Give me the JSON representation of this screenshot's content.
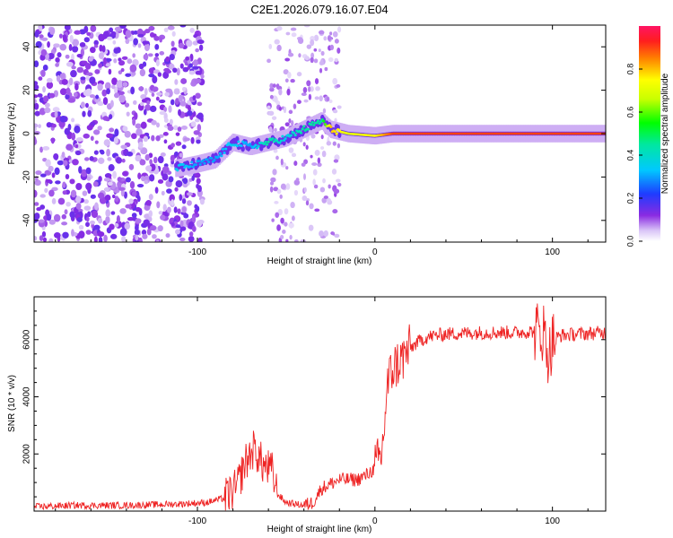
{
  "title": "C2E1.2026.079.16.07.E04",
  "chart_data": [
    {
      "type": "heatmap",
      "xlabel": "Height of straight line (km)",
      "ylabel": "Frequency (Hz)",
      "xlim": [
        -192,
        130
      ],
      "ylim": [
        -50,
        50
      ],
      "xticks": [
        -100,
        0,
        100
      ],
      "yticks": [
        -40,
        -20,
        0,
        20,
        40
      ],
      "colorbar": {
        "label": "Normalized spectral amplitude",
        "range": [
          0,
          1
        ],
        "ticks": [
          0.0,
          0.2,
          0.4,
          0.6,
          0.8
        ]
      },
      "ridge": [
        {
          "x": -112,
          "y": -16,
          "amp": 0.35
        },
        {
          "x": -100,
          "y": -14,
          "amp": 0.3
        },
        {
          "x": -90,
          "y": -12,
          "amp": 0.3
        },
        {
          "x": -80,
          "y": -4,
          "amp": 0.35
        },
        {
          "x": -70,
          "y": -6,
          "amp": 0.3
        },
        {
          "x": -60,
          "y": -4,
          "amp": 0.45
        },
        {
          "x": -50,
          "y": -2,
          "amp": 0.35
        },
        {
          "x": -40,
          "y": 2,
          "amp": 0.45
        },
        {
          "x": -30,
          "y": 6,
          "amp": 0.45
        },
        {
          "x": -25,
          "y": 2,
          "amp": 0.8
        },
        {
          "x": -15,
          "y": 0,
          "amp": 0.7
        },
        {
          "x": 0,
          "y": -1,
          "amp": 0.75
        },
        {
          "x": 10,
          "y": 0,
          "amp": 0.9
        },
        {
          "x": 130,
          "y": 0,
          "amp": 0.9
        }
      ]
    },
    {
      "type": "line",
      "xlabel": "Height of straight line (km)",
      "ylabel": "SNR (10 * v/v)",
      "xlim": [
        -192,
        130
      ],
      "ylim": [
        0,
        7500
      ],
      "xticks": [
        -100,
        0,
        100
      ],
      "yticks": [
        2000,
        4000,
        6000
      ],
      "series": [
        {
          "name": "SNR",
          "color": "#ee2222",
          "x": [
            -192,
            -170,
            -140,
            -110,
            -95,
            -85,
            -78,
            -73,
            -68,
            -63,
            -58,
            -55,
            -50,
            -45,
            -40,
            -35,
            -30,
            -20,
            -10,
            -5,
            0,
            4,
            7,
            10,
            15,
            20,
            25,
            30,
            40,
            60,
            80,
            90,
            95,
            98,
            100,
            105,
            115,
            130
          ],
          "y": [
            150,
            200,
            200,
            250,
            300,
            450,
            800,
            1700,
            2200,
            1600,
            1400,
            600,
            300,
            250,
            200,
            300,
            800,
            1100,
            1100,
            1250,
            1500,
            2000,
            4400,
            5000,
            5300,
            5700,
            5950,
            6100,
            6200,
            6250,
            6250,
            6300,
            6300,
            5400,
            6000,
            6150,
            6200,
            6250
          ]
        }
      ]
    }
  ]
}
